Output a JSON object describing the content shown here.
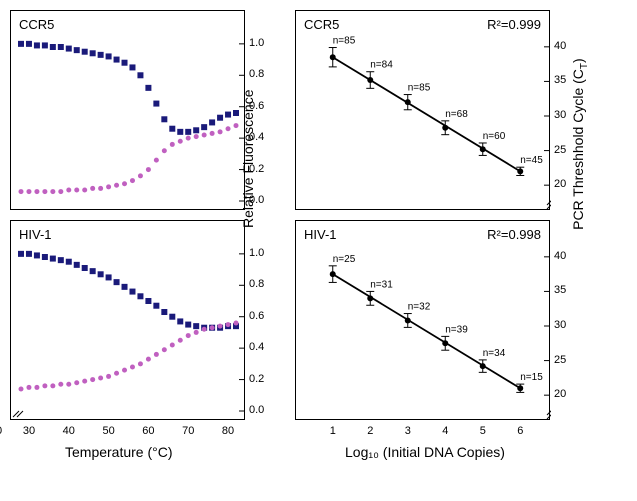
{
  "charts": {
    "melt_ccr5": {
      "label": "CCR5",
      "type": "scatter-line",
      "x_range": [
        28,
        82
      ],
      "y_range": [
        0,
        1.05
      ],
      "y_ticks": [
        0.0,
        0.2,
        0.4,
        0.6,
        0.8,
        1.0
      ],
      "y_tick_labels": [
        "0.0",
        "0.2",
        "0.4",
        "0.6",
        "0.8",
        "1.0"
      ],
      "series": [
        {
          "color": "#1a1a7a",
          "marker": "square",
          "size": 3,
          "x": [
            28,
            30,
            32,
            34,
            36,
            38,
            40,
            42,
            44,
            46,
            48,
            50,
            52,
            54,
            56,
            58,
            60,
            62,
            64,
            66,
            68,
            70,
            72,
            74,
            76,
            78,
            80,
            82
          ],
          "y": [
            1.0,
            1.0,
            0.99,
            0.99,
            0.98,
            0.98,
            0.97,
            0.96,
            0.95,
            0.94,
            0.93,
            0.92,
            0.9,
            0.88,
            0.85,
            0.8,
            0.72,
            0.62,
            0.52,
            0.46,
            0.44,
            0.44,
            0.45,
            0.47,
            0.5,
            0.53,
            0.55,
            0.56
          ]
        },
        {
          "color": "#c060c0",
          "marker": "circle",
          "size": 2.5,
          "x": [
            28,
            30,
            32,
            34,
            36,
            38,
            40,
            42,
            44,
            46,
            48,
            50,
            52,
            54,
            56,
            58,
            60,
            62,
            64,
            66,
            68,
            70,
            72,
            74,
            76,
            78,
            80,
            82
          ],
          "y": [
            0.06,
            0.06,
            0.06,
            0.06,
            0.06,
            0.06,
            0.07,
            0.07,
            0.07,
            0.08,
            0.08,
            0.09,
            0.1,
            0.11,
            0.13,
            0.16,
            0.2,
            0.26,
            0.32,
            0.36,
            0.38,
            0.4,
            0.41,
            0.42,
            0.43,
            0.44,
            0.46,
            0.48
          ]
        }
      ]
    },
    "melt_hiv": {
      "label": "HIV-1",
      "type": "scatter-line",
      "x_range": [
        28,
        82
      ],
      "y_range": [
        0,
        1.05
      ],
      "y_ticks": [
        0.0,
        0.2,
        0.4,
        0.6,
        0.8,
        1.0
      ],
      "y_tick_labels": [
        "0.0",
        "0.2",
        "0.4",
        "0.6",
        "0.8",
        "1.0"
      ],
      "x_ticks": [
        30,
        40,
        50,
        60,
        70,
        80
      ],
      "x_tick_labels": [
        "30",
        "40",
        "50",
        "60",
        "70",
        "80"
      ],
      "x_origin_label": "0",
      "series": [
        {
          "color": "#1a1a7a",
          "marker": "square",
          "size": 3,
          "x": [
            28,
            30,
            32,
            34,
            36,
            38,
            40,
            42,
            44,
            46,
            48,
            50,
            52,
            54,
            56,
            58,
            60,
            62,
            64,
            66,
            68,
            70,
            72,
            74,
            76,
            78,
            80,
            82
          ],
          "y": [
            1.0,
            1.0,
            0.99,
            0.98,
            0.97,
            0.96,
            0.95,
            0.93,
            0.91,
            0.89,
            0.87,
            0.85,
            0.82,
            0.79,
            0.76,
            0.73,
            0.7,
            0.67,
            0.63,
            0.6,
            0.57,
            0.55,
            0.54,
            0.53,
            0.53,
            0.53,
            0.54,
            0.54
          ]
        },
        {
          "color": "#c060c0",
          "marker": "circle",
          "size": 2.5,
          "x": [
            28,
            30,
            32,
            34,
            36,
            38,
            40,
            42,
            44,
            46,
            48,
            50,
            52,
            54,
            56,
            58,
            60,
            62,
            64,
            66,
            68,
            70,
            72,
            74,
            76,
            78,
            80,
            82
          ],
          "y": [
            0.14,
            0.15,
            0.15,
            0.16,
            0.16,
            0.17,
            0.17,
            0.18,
            0.19,
            0.2,
            0.21,
            0.22,
            0.24,
            0.26,
            0.28,
            0.3,
            0.33,
            0.36,
            0.39,
            0.42,
            0.45,
            0.48,
            0.5,
            0.52,
            0.53,
            0.54,
            0.55,
            0.56
          ]
        }
      ]
    },
    "std_ccr5": {
      "label": "CCR5",
      "r2": "R²=0.999",
      "type": "error-regression",
      "x_range": [
        0.5,
        6.5
      ],
      "y_range": [
        18,
        42
      ],
      "y_ticks": [
        20,
        25,
        30,
        35,
        40
      ],
      "y_tick_labels": [
        "20",
        "25",
        "30",
        "35",
        "40"
      ],
      "line_color": "#000",
      "points": [
        {
          "x": 1,
          "y": 38.5,
          "err": 1.4,
          "n": "n=85"
        },
        {
          "x": 2,
          "y": 35.2,
          "err": 1.2,
          "n": "n=84"
        },
        {
          "x": 3,
          "y": 32.0,
          "err": 1.1,
          "n": "n=85"
        },
        {
          "x": 4,
          "y": 28.3,
          "err": 1.0,
          "n": "n=68"
        },
        {
          "x": 5,
          "y": 25.2,
          "err": 0.9,
          "n": "n=60"
        },
        {
          "x": 6,
          "y": 22.0,
          "err": 0.6,
          "n": "n=45"
        }
      ]
    },
    "std_hiv": {
      "label": "HIV-1",
      "r2": "R²=0.998",
      "type": "error-regression",
      "x_range": [
        0.5,
        6.5
      ],
      "y_range": [
        18,
        42
      ],
      "y_ticks": [
        20,
        25,
        30,
        35,
        40
      ],
      "y_tick_labels": [
        "20",
        "25",
        "30",
        "35",
        "40"
      ],
      "x_ticks": [
        1,
        2,
        3,
        4,
        5,
        6
      ],
      "x_tick_labels": [
        "1",
        "2",
        "3",
        "4",
        "5",
        "6"
      ],
      "line_color": "#000",
      "points": [
        {
          "x": 1,
          "y": 37.5,
          "err": 1.2,
          "n": "n=25"
        },
        {
          "x": 2,
          "y": 34.0,
          "err": 1.0,
          "n": "n=31"
        },
        {
          "x": 3,
          "y": 30.8,
          "err": 1.0,
          "n": "n=32"
        },
        {
          "x": 4,
          "y": 27.5,
          "err": 1.0,
          "n": "n=39"
        },
        {
          "x": 5,
          "y": 24.2,
          "err": 0.9,
          "n": "n=34"
        },
        {
          "x": 6,
          "y": 21.0,
          "err": 0.6,
          "n": "n=15"
        }
      ]
    }
  },
  "axis_labels": {
    "y_left": "Relative Fluorescence",
    "y_right": "PCR Threshhold Cycle (C_T)",
    "x_left": "Temperature (°C)",
    "x_right": "Log₁₀ (Initial DNA Copies)"
  },
  "colors": {
    "navy": "#1a1a7a",
    "magenta": "#c060c0",
    "black": "#000000",
    "bg": "#ffffff"
  },
  "fonts": {
    "label_size": 13,
    "axis_size": 14,
    "tick_size": 11
  }
}
